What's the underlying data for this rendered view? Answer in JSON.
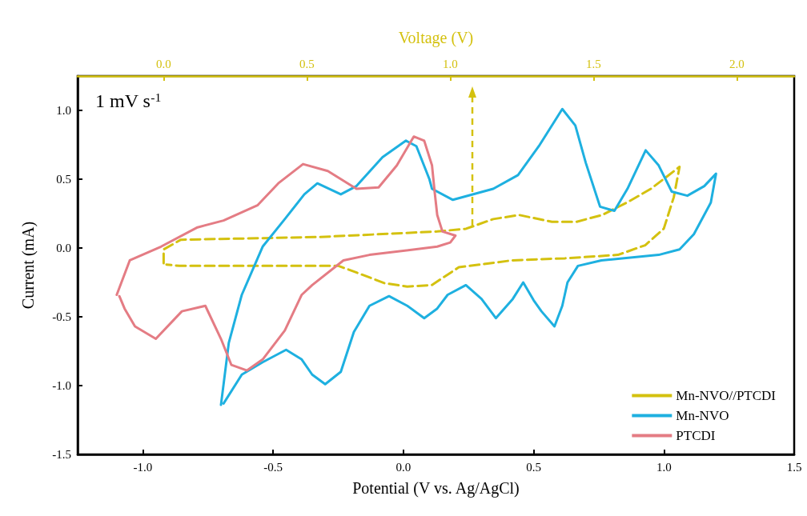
{
  "chart_data": {
    "type": "line",
    "xlabel": "Potential (V vs. Ag/AgCl)",
    "ylabel": "Current (mA)",
    "x2label": "Voltage (V)",
    "annotations": [
      "1 mV s$^{-1}$"
    ],
    "xlim": [
      -1.25,
      1.5
    ],
    "xticks": [
      {
        "value": -1,
        "label": "-1.0"
      },
      -0.5,
      {
        "value": 0,
        "label": "0.0"
      },
      0.5,
      {
        "value": 1,
        "label": "1.0"
      },
      1.5
    ],
    "x2lim": [
      -0.3,
      2.2
    ],
    "x2ticks": [
      {
        "value": 0,
        "label": "0.0"
      },
      0.5,
      {
        "value": 1,
        "label": "1.0"
      },
      1.5,
      {
        "value": 2,
        "label": "2.0"
      }
    ],
    "ylim": [
      -1.5,
      1.25
    ],
    "yticks": [
      -1.5,
      {
        "value": -1,
        "label": "-1.0"
      },
      -0.5,
      {
        "value": 0,
        "label": "0.0"
      },
      0.5,
      {
        "value": 1,
        "label": "1.0"
      }
    ],
    "legend": "bottom right",
    "marker": "none",
    "series": [
      {
        "name": "Mn-NVO//PTCDI",
        "color": "#d4c10f",
        "axis": "x2",
        "line_style": "dashed",
        "x": [
          0.0,
          0.0,
          0.06,
          0.545,
          0.955,
          1.055,
          1.15,
          1.24,
          1.355,
          1.44,
          1.53,
          1.625,
          1.7,
          1.8,
          1.78,
          1.745,
          1.68,
          1.585,
          1.4,
          1.215,
          1.03,
          0.935,
          0.85,
          0.77,
          0.675,
          0.61,
          0.055,
          0.01
        ],
        "values": [
          -0.11,
          -0.01,
          0.06,
          0.08,
          0.12,
          0.14,
          0.21,
          0.24,
          0.19,
          0.19,
          0.24,
          0.34,
          0.43,
          0.59,
          0.37,
          0.14,
          0.02,
          -0.05,
          -0.075,
          -0.09,
          -0.14,
          -0.27,
          -0.28,
          -0.255,
          -0.18,
          -0.13,
          -0.13,
          -0.12
        ]
      },
      {
        "name": "Mn-NVO",
        "color": "#1eb0e0",
        "line_style": "solid",
        "x": [
          -0.7,
          -0.67,
          -0.62,
          -0.54,
          -0.455,
          -0.38,
          -0.33,
          -0.24,
          -0.18,
          -0.08,
          0.01,
          0.05,
          0.1,
          0.11,
          0.19,
          0.345,
          0.44,
          0.52,
          0.61,
          0.66,
          0.7,
          0.755,
          0.81,
          0.86,
          0.93,
          0.98,
          1.03,
          1.09,
          1.155,
          1.2,
          1.18,
          1.115,
          1.06,
          0.98,
          0.76,
          0.67,
          0.63,
          0.61,
          0.58,
          0.53,
          0.5,
          0.46,
          0.42,
          0.355,
          0.3,
          0.24,
          0.17,
          0.13,
          0.08,
          0.015,
          -0.055,
          -0.13,
          -0.19,
          -0.24,
          -0.3,
          -0.35,
          -0.39,
          -0.45,
          -0.54,
          -0.62,
          -0.69
        ],
        "values": [
          -1.14,
          -0.69,
          -0.34,
          0.01,
          0.21,
          0.39,
          0.47,
          0.39,
          0.45,
          0.66,
          0.78,
          0.74,
          0.5,
          0.43,
          0.35,
          0.43,
          0.53,
          0.74,
          1.01,
          0.89,
          0.62,
          0.3,
          0.27,
          0.43,
          0.71,
          0.6,
          0.41,
          0.38,
          0.45,
          0.54,
          0.33,
          0.1,
          -0.01,
          -0.05,
          -0.09,
          -0.13,
          -0.25,
          -0.42,
          -0.57,
          -0.46,
          -0.38,
          -0.25,
          -0.37,
          -0.51,
          -0.37,
          -0.27,
          -0.34,
          -0.44,
          -0.51,
          -0.42,
          -0.35,
          -0.42,
          -0.61,
          -0.9,
          -0.99,
          -0.92,
          -0.81,
          -0.74,
          -0.83,
          -0.92,
          -1.13
        ]
      },
      {
        "name": "PTCDI",
        "color": "#e47c84",
        "line_style": "solid",
        "x": [
          -1.1,
          -1.05,
          -0.93,
          -0.79,
          -0.69,
          -0.56,
          -0.48,
          -0.385,
          -0.29,
          -0.18,
          -0.095,
          -0.025,
          0.04,
          0.08,
          0.11,
          0.12,
          0.13,
          0.15,
          0.2,
          0.18,
          0.13,
          -0.13,
          -0.23,
          -0.35,
          -0.39,
          -0.455,
          -0.54,
          -0.6,
          -0.66,
          -0.7,
          -0.76,
          -0.85,
          -0.95,
          -1.03,
          -1.07,
          -1.09
        ],
        "values": [
          -0.34,
          -0.09,
          0.01,
          0.15,
          0.2,
          0.31,
          0.47,
          0.61,
          0.56,
          0.43,
          0.44,
          0.6,
          0.81,
          0.78,
          0.6,
          0.41,
          0.24,
          0.12,
          0.09,
          0.04,
          0.01,
          -0.05,
          -0.09,
          -0.27,
          -0.34,
          -0.6,
          -0.81,
          -0.89,
          -0.85,
          -0.66,
          -0.42,
          -0.46,
          -0.66,
          -0.57,
          -0.44,
          -0.35
        ]
      }
    ]
  }
}
